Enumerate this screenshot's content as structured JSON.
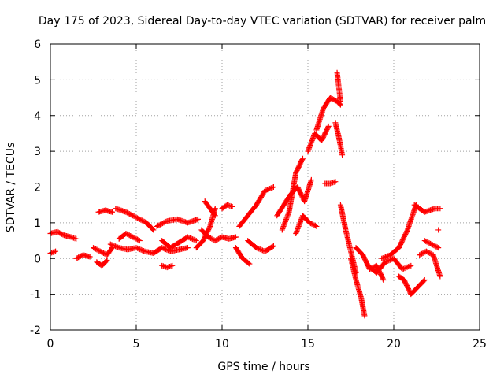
{
  "chart_data": {
    "type": "scatter",
    "title": "Day 175 of 2023, Sidereal Day-to-day VTEC variation (SDTVAR) for receiver palm",
    "xlabel": "GPS time / hours",
    "ylabel": "SDTVAR / TECUs",
    "xlim": [
      0,
      25
    ],
    "ylim": [
      -2,
      6
    ],
    "xticks": [
      "0",
      "5",
      "10",
      "15",
      "20",
      "25"
    ],
    "yticks": [
      "-2",
      "-1",
      "0",
      "1",
      "2",
      "3",
      "4",
      "5",
      "6"
    ],
    "grid": true,
    "marker": "plus",
    "color": "#ff0000",
    "tracks": [
      {
        "name": "t1",
        "x": [
          0.0,
          0.4,
          0.8,
          1.2,
          1.5
        ],
        "y": [
          0.7,
          0.75,
          0.65,
          0.6,
          0.55
        ]
      },
      {
        "name": "t2",
        "x": [
          0.0,
          0.3
        ],
        "y": [
          0.15,
          0.2
        ]
      },
      {
        "name": "t3",
        "x": [
          1.5,
          1.9,
          2.3
        ],
        "y": [
          0.0,
          0.1,
          0.05
        ]
      },
      {
        "name": "t4",
        "x": [
          2.5,
          2.9,
          3.3,
          3.6
        ],
        "y": [
          0.3,
          0.2,
          0.1,
          0.3
        ]
      },
      {
        "name": "t5",
        "x": [
          2.8,
          3.2,
          3.6
        ],
        "y": [
          1.3,
          1.35,
          1.3
        ]
      },
      {
        "name": "t6",
        "x": [
          2.7,
          3.0,
          3.3
        ],
        "y": [
          -0.1,
          -0.2,
          -0.05
        ]
      },
      {
        "name": "t7",
        "x": [
          3.8,
          4.4,
          5.0,
          5.6,
          6.0
        ],
        "y": [
          1.4,
          1.3,
          1.15,
          1.0,
          0.8
        ]
      },
      {
        "name": "t8",
        "x": [
          3.5,
          4.0,
          4.5,
          5.0,
          5.5,
          6.0,
          6.5,
          7.0,
          7.5,
          8.0
        ],
        "y": [
          0.4,
          0.3,
          0.25,
          0.3,
          0.2,
          0.15,
          0.3,
          0.2,
          0.25,
          0.3
        ]
      },
      {
        "name": "t9",
        "x": [
          4.0,
          4.4,
          4.8,
          5.2
        ],
        "y": [
          0.55,
          0.7,
          0.6,
          0.5
        ]
      },
      {
        "name": "t10",
        "x": [
          6.5,
          6.8,
          7.1
        ],
        "y": [
          -0.2,
          -0.25,
          -0.2
        ]
      },
      {
        "name": "t11",
        "x": [
          6.2,
          6.8,
          7.4,
          8.0,
          8.6
        ],
        "y": [
          0.9,
          1.05,
          1.1,
          1.0,
          1.1
        ]
      },
      {
        "name": "t12",
        "x": [
          6.5,
          7.0,
          7.5,
          8.0,
          8.5
        ],
        "y": [
          0.5,
          0.3,
          0.45,
          0.6,
          0.5
        ]
      },
      {
        "name": "t13",
        "x": [
          8.5,
          8.9,
          9.3,
          9.6
        ],
        "y": [
          0.3,
          0.5,
          0.9,
          1.4
        ]
      },
      {
        "name": "t14",
        "x": [
          8.8,
          9.2,
          9.6,
          10.0,
          10.4,
          10.8
        ],
        "y": [
          0.8,
          0.6,
          0.5,
          0.6,
          0.55,
          0.6
        ]
      },
      {
        "name": "t15",
        "x": [
          9.0,
          9.3,
          9.6
        ],
        "y": [
          1.6,
          1.4,
          1.2
        ]
      },
      {
        "name": "t16",
        "x": [
          10.0,
          10.3,
          10.6
        ],
        "y": [
          1.4,
          1.5,
          1.45
        ]
      },
      {
        "name": "t17",
        "x": [
          10.8,
          11.2,
          11.6
        ],
        "y": [
          0.3,
          0.0,
          -0.15
        ]
      },
      {
        "name": "t18",
        "x": [
          11.0,
          11.5,
          12.0,
          12.5,
          13.0
        ],
        "y": [
          0.9,
          1.2,
          1.5,
          1.9,
          2.0
        ]
      },
      {
        "name": "t19",
        "x": [
          11.5,
          12.0,
          12.5,
          13.0
        ],
        "y": [
          0.5,
          0.3,
          0.2,
          0.35
        ]
      },
      {
        "name": "t20",
        "x": [
          13.2,
          13.6,
          14.0,
          14.4,
          14.8,
          15.2
        ],
        "y": [
          1.2,
          1.5,
          1.8,
          2.0,
          1.6,
          2.2
        ]
      },
      {
        "name": "t21",
        "x": [
          13.5,
          13.9,
          14.3,
          14.7
        ],
        "y": [
          0.8,
          1.3,
          2.4,
          2.8
        ]
      },
      {
        "name": "t22",
        "x": [
          14.3,
          14.7,
          15.1,
          15.5
        ],
        "y": [
          0.7,
          1.2,
          1.0,
          0.9
        ]
      },
      {
        "name": "t23",
        "x": [
          15.0,
          15.4,
          15.8,
          16.2
        ],
        "y": [
          3.0,
          3.5,
          3.3,
          3.7
        ]
      },
      {
        "name": "t24",
        "x": [
          15.5,
          15.9,
          16.3,
          16.7,
          16.9
        ],
        "y": [
          3.6,
          4.2,
          4.5,
          4.4,
          4.3
        ]
      },
      {
        "name": "t25",
        "x": [
          16.7,
          16.8,
          16.9
        ],
        "y": [
          5.2,
          4.8,
          4.4
        ]
      },
      {
        "name": "t26",
        "x": [
          16.6,
          16.8,
          17.0
        ],
        "y": [
          3.8,
          3.4,
          2.9
        ]
      },
      {
        "name": "t27",
        "x": [
          16.0,
          16.3,
          16.6
        ],
        "y": [
          2.1,
          2.1,
          2.15
        ]
      },
      {
        "name": "t28",
        "x": [
          16.9,
          17.2,
          17.5,
          17.8
        ],
        "y": [
          1.5,
          0.8,
          0.2,
          -0.4
        ]
      },
      {
        "name": "t29",
        "x": [
          17.5,
          17.8,
          18.1,
          18.3
        ],
        "y": [
          0.0,
          -0.6,
          -1.1,
          -1.6
        ]
      },
      {
        "name": "t30",
        "x": [
          17.8,
          18.2,
          18.6,
          19.0,
          19.4
        ],
        "y": [
          0.3,
          0.1,
          -0.3,
          -0.2,
          -0.6
        ]
      },
      {
        "name": "t31",
        "x": [
          18.5,
          19.0,
          19.5,
          20.0,
          20.5,
          21.0
        ],
        "y": [
          -0.2,
          -0.4,
          -0.1,
          0.0,
          -0.3,
          -0.2
        ]
      },
      {
        "name": "t32",
        "x": [
          19.3,
          19.8,
          20.3,
          20.8,
          21.3
        ],
        "y": [
          0.0,
          0.1,
          0.3,
          0.8,
          1.5
        ]
      },
      {
        "name": "t33",
        "x": [
          21.2,
          21.8,
          22.4,
          22.7
        ],
        "y": [
          1.5,
          1.3,
          1.4,
          1.4
        ]
      },
      {
        "name": "t34",
        "x": [
          20.3,
          20.6,
          21.0,
          21.4,
          21.8
        ],
        "y": [
          -0.5,
          -0.6,
          -1.0,
          -0.8,
          -0.6
        ]
      },
      {
        "name": "t35",
        "x": [
          21.5,
          21.9,
          22.3,
          22.7
        ],
        "y": [
          0.1,
          0.2,
          0.1,
          -0.5
        ]
      },
      {
        "name": "t36",
        "x": [
          21.8,
          22.2,
          22.6
        ],
        "y": [
          0.5,
          0.4,
          0.3
        ]
      },
      {
        "name": "t37",
        "x": [
          22.6
        ],
        "y": [
          0.8
        ]
      }
    ]
  }
}
